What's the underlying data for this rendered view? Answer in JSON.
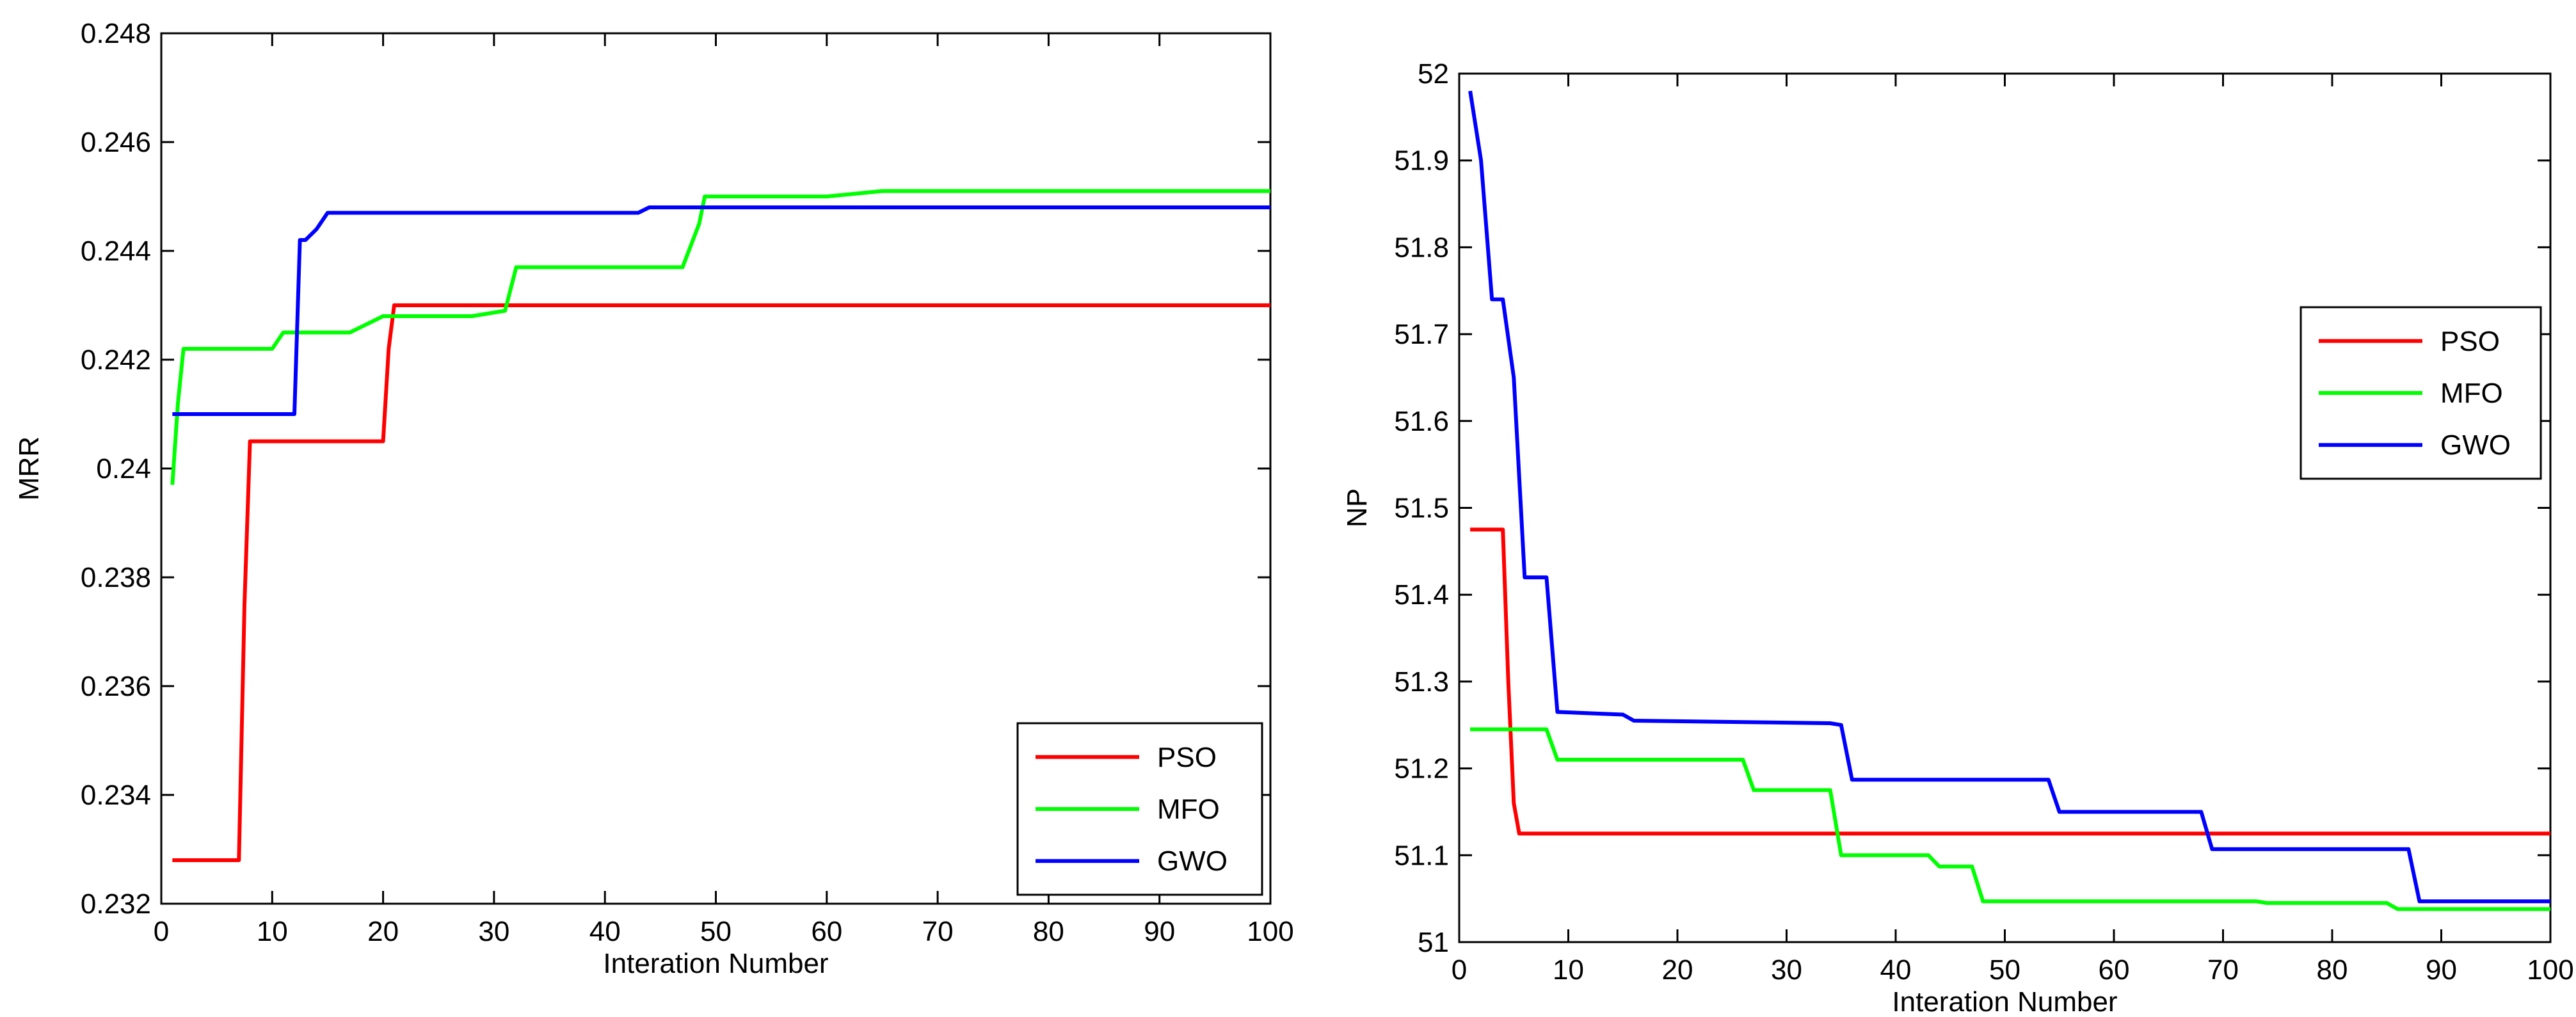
{
  "chart_data": [
    {
      "type": "line",
      "title": "",
      "xlabel": "Interation Number",
      "ylabel": "MRR",
      "xlim": [
        0,
        100
      ],
      "ylim": [
        0.232,
        0.248
      ],
      "xticks": [
        0,
        10,
        20,
        30,
        40,
        50,
        60,
        70,
        80,
        90,
        100
      ],
      "xtick_labels": [
        "0",
        "10",
        "20",
        "30",
        "40",
        "50",
        "60",
        "70",
        "80",
        "90",
        "100"
      ],
      "yticks": [
        0.232,
        0.234,
        0.236,
        0.238,
        0.24,
        0.242,
        0.244,
        0.246,
        0.248
      ],
      "ytick_labels": [
        "0.232",
        "0.234",
        "0.236",
        "0.238",
        "0.24",
        "0.242",
        "0.244",
        "0.246",
        "0.248"
      ],
      "grid": false,
      "legend_position": "bottom-right",
      "series": [
        {
          "name": "PSO",
          "color": "#ff0000",
          "x": [
            1,
            7,
            7.5,
            8,
            20,
            20.5,
            21,
            100
          ],
          "y": [
            0.2328,
            0.2328,
            0.2375,
            0.2405,
            0.2405,
            0.2422,
            0.243,
            0.243
          ]
        },
        {
          "name": "MFO",
          "color": "#00ff00",
          "x": [
            1,
            1.5,
            2,
            10,
            11,
            17,
            19,
            20,
            28,
            31,
            32,
            47,
            48.5,
            49,
            55,
            60,
            65,
            100
          ],
          "y": [
            0.2397,
            0.2412,
            0.2422,
            0.2422,
            0.2425,
            0.2425,
            0.2427,
            0.2428,
            0.2428,
            0.2429,
            0.2437,
            0.2437,
            0.2445,
            0.245,
            0.245,
            0.245,
            0.2451,
            0.2451
          ]
        },
        {
          "name": "GWO",
          "color": "#0000ff",
          "x": [
            1,
            12,
            12.5,
            13,
            14,
            15,
            43,
            44,
            100
          ],
          "y": [
            0.241,
            0.241,
            0.2442,
            0.2442,
            0.2444,
            0.2447,
            0.2447,
            0.2448,
            0.2448
          ]
        }
      ]
    },
    {
      "type": "line",
      "title": "",
      "xlabel": "Interation Number",
      "ylabel": "NP",
      "xlim": [
        0,
        100
      ],
      "ylim": [
        51,
        52
      ],
      "xticks": [
        0,
        10,
        20,
        30,
        40,
        50,
        60,
        70,
        80,
        90,
        100
      ],
      "xtick_labels": [
        "0",
        "10",
        "20",
        "30",
        "40",
        "50",
        "60",
        "70",
        "80",
        "90",
        "100"
      ],
      "yticks": [
        51,
        51.1,
        51.2,
        51.3,
        51.4,
        51.5,
        51.6,
        51.7,
        51.8,
        51.9,
        52
      ],
      "ytick_labels": [
        "51",
        "51.1",
        "51.2",
        "51.3",
        "51.4",
        "51.5",
        "51.6",
        "51.7",
        "51.8",
        "51.9",
        "52"
      ],
      "grid": false,
      "legend_position": "top-right",
      "series": [
        {
          "name": "PSO",
          "color": "#ff0000",
          "x": [
            1,
            4,
            4.5,
            5,
            5.5,
            100
          ],
          "y": [
            51.475,
            51.475,
            51.3,
            51.16,
            51.125,
            51.125
          ]
        },
        {
          "name": "MFO",
          "color": "#00ff00",
          "x": [
            1,
            8,
            9,
            26,
            27,
            34,
            35,
            36,
            43,
            44,
            47,
            48,
            73,
            74,
            85,
            86,
            100
          ],
          "y": [
            51.245,
            51.245,
            51.21,
            51.21,
            51.175,
            51.175,
            51.1,
            51.1,
            51.1,
            51.087,
            51.087,
            51.047,
            51.047,
            51.045,
            51.045,
            51.038,
            51.038
          ]
        },
        {
          "name": "GWO",
          "color": "#0000ff",
          "x": [
            1,
            2,
            3,
            4,
            5,
            6,
            7,
            8,
            9,
            15,
            16,
            34,
            35,
            36,
            54,
            55,
            68,
            69,
            87,
            88,
            100
          ],
          "y": [
            51.98,
            51.9,
            51.74,
            51.74,
            51.65,
            51.42,
            51.42,
            51.42,
            51.265,
            51.262,
            51.255,
            51.252,
            51.25,
            51.187,
            51.187,
            51.15,
            51.15,
            51.107,
            51.107,
            51.047,
            51.047
          ]
        }
      ]
    }
  ]
}
